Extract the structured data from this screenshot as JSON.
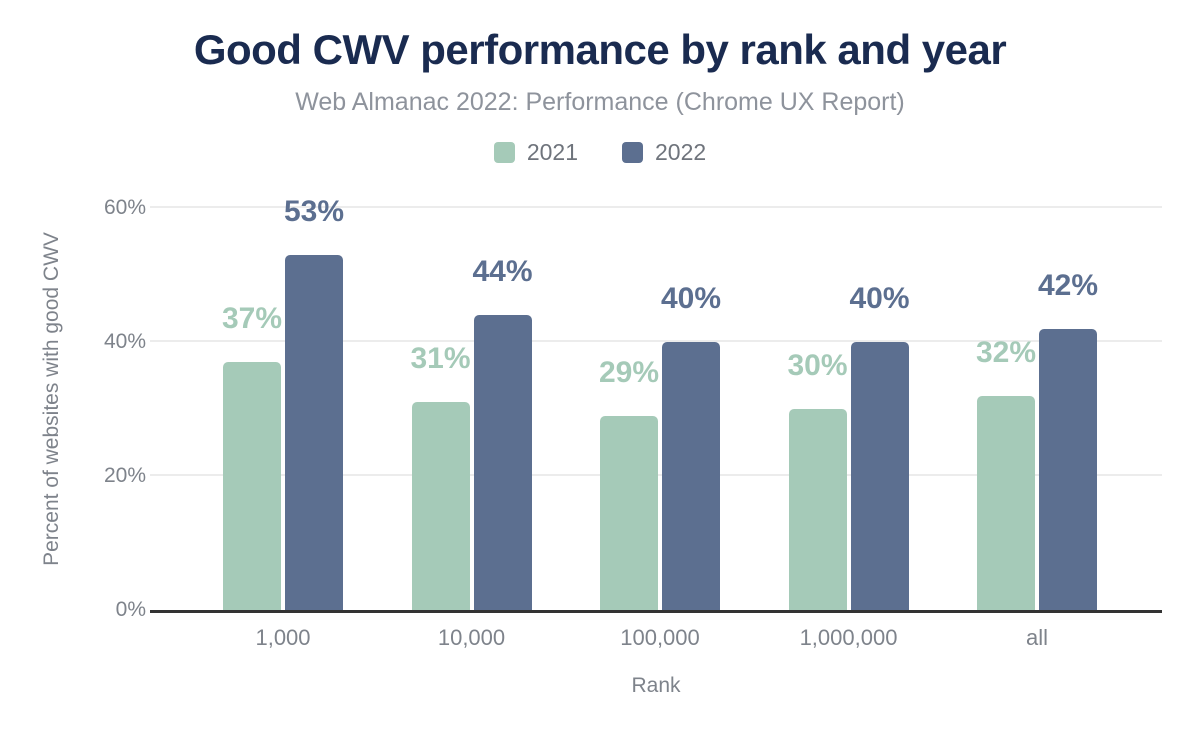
{
  "chart_data": {
    "type": "bar",
    "title": "Good CWV performance by rank and year",
    "subtitle": "Web Almanac 2022: Performance (Chrome UX Report)",
    "categories": [
      "1,000",
      "10,000",
      "100,000",
      "1,000,000",
      "all"
    ],
    "series": [
      {
        "name": "2021",
        "color": "#a5cab8",
        "values": [
          37,
          31,
          29,
          30,
          32
        ]
      },
      {
        "name": "2022",
        "color": "#5c6f90",
        "values": [
          53,
          44,
          40,
          40,
          42
        ]
      }
    ],
    "data_labels": [
      [
        "37%",
        "31%",
        "29%",
        "30%",
        "32%"
      ],
      [
        "53%",
        "44%",
        "40%",
        "40%",
        "42%"
      ]
    ],
    "xlabel": "Rank",
    "ylabel": "Percent of websites with good CWV",
    "ylim": [
      0,
      63
    ],
    "yticks": [
      0,
      20,
      40,
      60
    ],
    "ytick_labels": [
      "0%",
      "20%",
      "40%",
      "60%"
    ],
    "grid": true,
    "legend_position": "top"
  },
  "colors": {
    "title": "#1a2b50",
    "subtitle": "#8e939c",
    "axis_text": "#7e838b",
    "legend_text": "#6f747c",
    "gridline": "#ececec",
    "axis_line": "#333333",
    "background": "#ffffff"
  }
}
